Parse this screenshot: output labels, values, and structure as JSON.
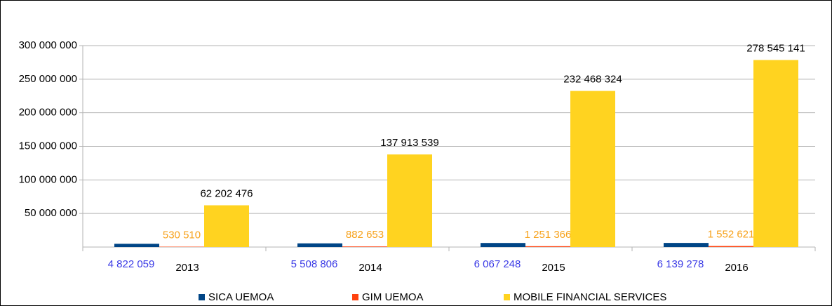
{
  "chart_data": {
    "type": "bar",
    "categories": [
      "2013",
      "2014",
      "2015",
      "2016"
    ],
    "series": [
      {
        "name": "SICA UEMOA",
        "color": "#004586",
        "label_color": "#3a3ae6",
        "values": [
          4822059,
          5508806,
          6067248,
          6139278
        ],
        "value_labels": [
          "4 822 059",
          "5 508 806",
          "6 067 248",
          "6 139 278"
        ]
      },
      {
        "name": "GIM UEMOA",
        "color": "#ff420e",
        "label_color": "#f7a21b",
        "values": [
          530510,
          882653,
          1251366,
          1552621
        ],
        "value_labels": [
          "530 510",
          "882 653",
          "1 251 366",
          "1 552 621"
        ]
      },
      {
        "name": "MOBILE FINANCIAL SERVICES",
        "color": "#ffd320",
        "label_color": "#000000",
        "values": [
          62202476,
          137913539,
          232468324,
          278545141
        ],
        "value_labels": [
          "62 202 476",
          "137 913 539",
          "232 468 324",
          "278 545 141"
        ]
      }
    ],
    "ylim": [
      0,
      300000000
    ],
    "yticks": [
      {
        "value": 50000000,
        "label": "50 000 000"
      },
      {
        "value": 100000000,
        "label": "100 000 000"
      },
      {
        "value": 150000000,
        "label": "150 000 000"
      },
      {
        "value": 200000000,
        "label": "200 000 000"
      },
      {
        "value": 250000000,
        "label": "250 000 000"
      },
      {
        "value": 300000000,
        "label": "300 000 000"
      }
    ],
    "grid": true,
    "legend": "bottom"
  }
}
